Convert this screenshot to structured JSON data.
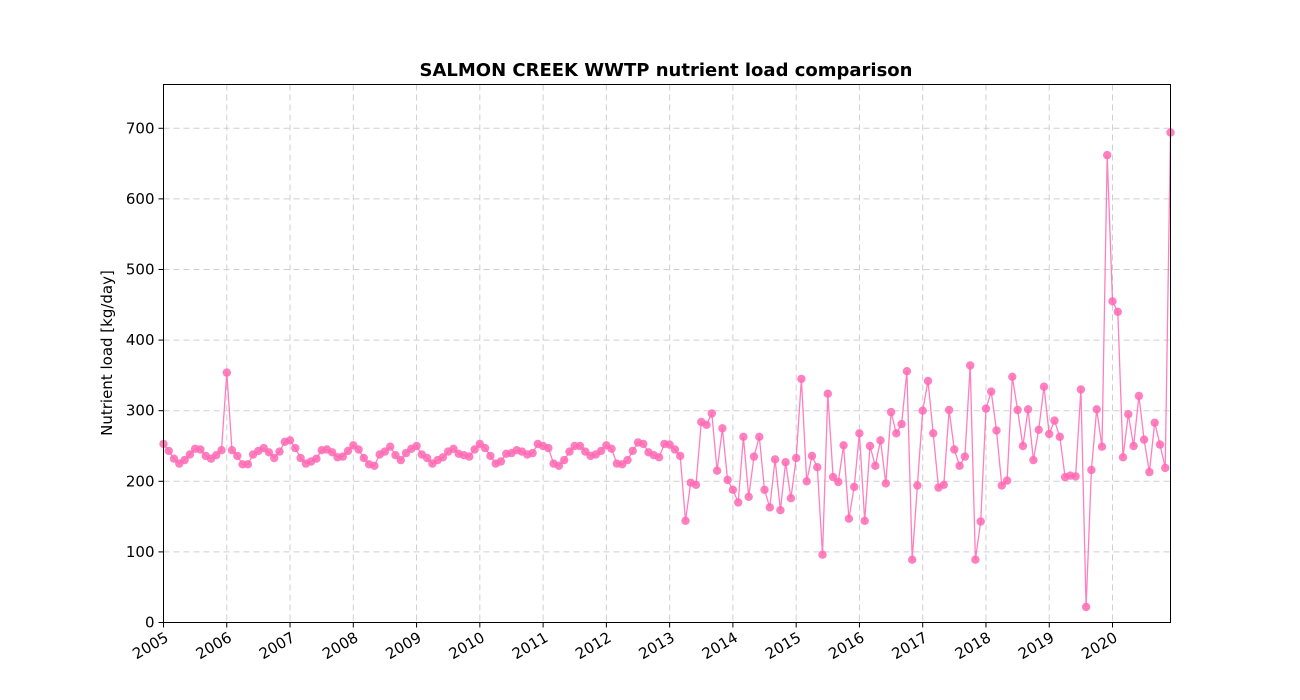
{
  "chart_data": {
    "type": "line",
    "title": "SALMON CREEK WWTP nutrient load comparison",
    "xlabel": "",
    "ylabel": "Nutrient load [kg/day]",
    "xlim": [
      "2005-01",
      "2020-12"
    ],
    "ylim": [
      0,
      762
    ],
    "yticks": [
      0,
      100,
      200,
      300,
      400,
      500,
      600,
      700
    ],
    "xtick_labels": [
      "2005",
      "2006",
      "2007",
      "2008",
      "2009",
      "2010",
      "2011",
      "2012",
      "2013",
      "2014",
      "2015",
      "2016",
      "2017",
      "2018",
      "2019",
      "2020"
    ],
    "grid": true,
    "markers": true,
    "color": "#ff69b4",
    "series": [
      {
        "x_start": "2005-01",
        "x_step": "1 month",
        "values": [
          253,
          243,
          232,
          225,
          230,
          238,
          246,
          245,
          236,
          232,
          237,
          244,
          354,
          244,
          236,
          224,
          224,
          238,
          243,
          247,
          241,
          233,
          242,
          256,
          258,
          247,
          233,
          225,
          228,
          232,
          244,
          245,
          241,
          234,
          235,
          243,
          251,
          245,
          233,
          224,
          222,
          238,
          242,
          249,
          237,
          230,
          240,
          246,
          250,
          238,
          233,
          225,
          230,
          234,
          242,
          246,
          239,
          237,
          235,
          245,
          253,
          247,
          236,
          225,
          228,
          239,
          240,
          244,
          242,
          238,
          240,
          253,
          250,
          247,
          225,
          222,
          230,
          242,
          250,
          250,
          242,
          236,
          238,
          243,
          251,
          246,
          225,
          224,
          230,
          243,
          255,
          253,
          241,
          237,
          234,
          253,
          252,
          245,
          236,
          144,
          198,
          195,
          284,
          280,
          296,
          215,
          275,
          202,
          188,
          170,
          263,
          178,
          235,
          263,
          188,
          163,
          231,
          159,
          227,
          176,
          233,
          345,
          200,
          236,
          220,
          96,
          324,
          206,
          199,
          251,
          147,
          192,
          268,
          144,
          250,
          222,
          258,
          197,
          298,
          268,
          281,
          356,
          89,
          194,
          300,
          342,
          268,
          191,
          195,
          301,
          245,
          222,
          235,
          364,
          89,
          143,
          303,
          327,
          272,
          194,
          201,
          348,
          301,
          250,
          302,
          230,
          273,
          334,
          267,
          286,
          263,
          206,
          208,
          207,
          330,
          22,
          216,
          302,
          249,
          662,
          455,
          440,
          234,
          295,
          250,
          321,
          259,
          213,
          283,
          252,
          219,
          694
        ]
      }
    ]
  }
}
